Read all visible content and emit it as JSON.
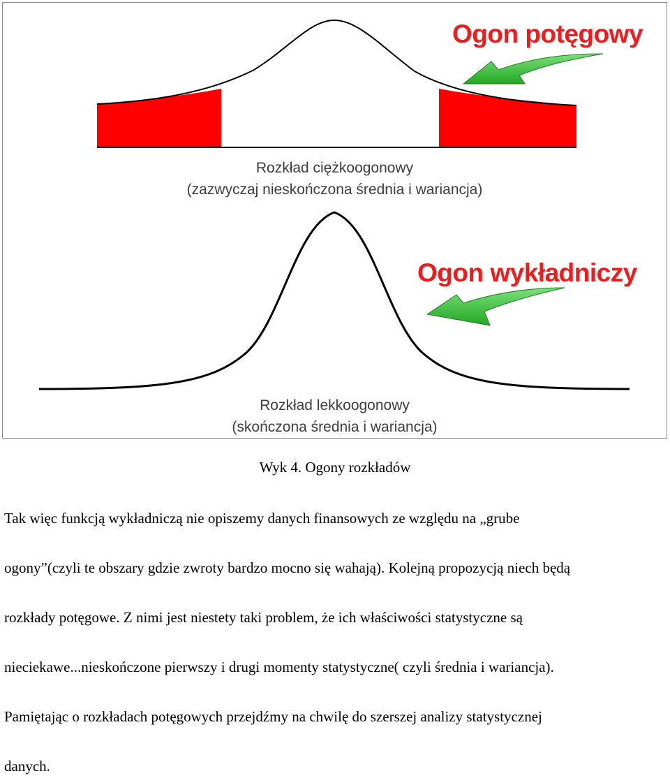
{
  "figure": {
    "heavy_tail_title": "Ogon potęgowy",
    "heavy_caption_line1": "Rozkład ciężkoogonowy",
    "heavy_caption_line2": "(zazwyczaj nieskończona średnia i wariancja)",
    "light_tail_title": "Ogon wykładniczy",
    "light_caption_line1": "Rozkład lekkoogonowy",
    "light_caption_line2": "(skończona średnia i wariancja)",
    "colors": {
      "tail_fill": "#ff0000",
      "tail_title": "#ee1c1c",
      "arrow": "#3cc43c",
      "curve": "#000000"
    }
  },
  "caption": "Wyk 4. Ogony rozkładów",
  "paragraph_lines": [
    "Tak więc funkcją wykładniczą nie opiszemy danych finansowych ze względu na „grube",
    "ogony”(czyli te obszary gdzie zwroty bardzo mocno się wahają). Kolejną propozycją niech będą",
    "rozkłady potęgowe. Z nimi jest niestety taki problem, że ich właściwości statystyczne są",
    "nieciekawe...nieskończone pierwszy i drugi momenty statystyczne( czyli średnia i wariancja).",
    "Pamiętając o rozkładach potęgowych przejdźmy na  chwilę do szerszej analizy statystycznej",
    "danych."
  ]
}
